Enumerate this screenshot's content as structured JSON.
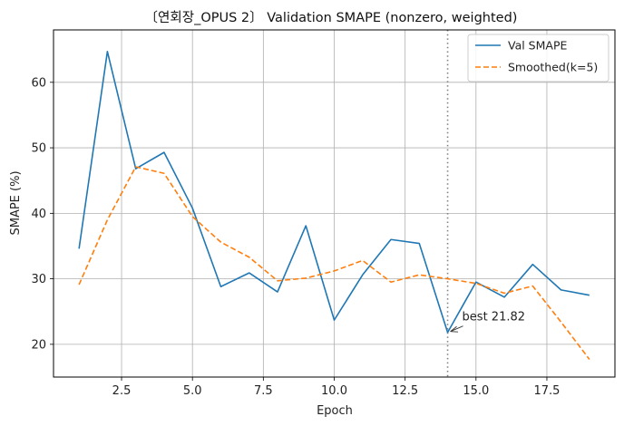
{
  "chart_data": {
    "type": "line",
    "title": "〔연회장_OPUS 2〕 Validation SMAPE (nonzero, weighted)",
    "xlabel": "Epoch",
    "ylabel": "SMAPE (%)",
    "xlim": [
      0.1,
      19.9
    ],
    "ylim": [
      15,
      68
    ],
    "xticks": [
      2.5,
      5.0,
      7.5,
      10.0,
      12.5,
      15.0,
      17.5
    ],
    "xtick_labels": [
      "2.5",
      "5.0",
      "7.5",
      "10.0",
      "12.5",
      "15.0",
      "17.5"
    ],
    "yticks": [
      20,
      30,
      40,
      50,
      60
    ],
    "ytick_labels": [
      "20",
      "30",
      "40",
      "50",
      "60"
    ],
    "grid": true,
    "legend_position": "top-right",
    "x": [
      1,
      2,
      3,
      4,
      5,
      6,
      7,
      8,
      9,
      10,
      11,
      12,
      13,
      14,
      15,
      16,
      17,
      18,
      19
    ],
    "series": [
      {
        "name": "Val SMAPE",
        "color": "#1f77b4",
        "style": "solid",
        "values": [
          34.6,
          64.7,
          46.8,
          49.3,
          40.8,
          28.8,
          30.9,
          28.0,
          38.1,
          23.7,
          30.6,
          36.0,
          35.4,
          21.82,
          29.5,
          27.2,
          32.2,
          28.3,
          27.5
        ]
      },
      {
        "name": "Smoothed(k=5)",
        "color": "#ff7f0e",
        "style": "dashed",
        "values": [
          29.1,
          39.0,
          47.1,
          46.1,
          39.5,
          35.6,
          33.3,
          29.7,
          30.1,
          31.2,
          32.8,
          29.5,
          30.6,
          30.0,
          29.3,
          27.8,
          28.9,
          23.4,
          17.7
        ]
      }
    ],
    "best_marker": {
      "x": 14,
      "y": 21.82,
      "label": "best 21.82",
      "line_color": "#808080"
    }
  }
}
